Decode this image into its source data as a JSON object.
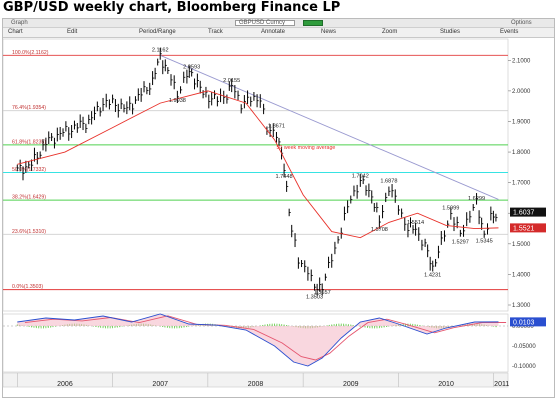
{
  "title": "GBP/USD weekly chart, Bloomberg Finance LP",
  "window": {
    "title_left": "Graph",
    "title_middle": "GBPUSD Curncy",
    "title_right": "Options"
  },
  "toolbar": {
    "items": [
      {
        "id": "chart",
        "label": "Chart"
      },
      {
        "id": "edit",
        "label": "Edit"
      },
      {
        "id": "period",
        "label": "Period/Range"
      },
      {
        "id": "track",
        "label": "Track"
      },
      {
        "id": "annotate",
        "label": "Annotate"
      },
      {
        "id": "news",
        "label": "News"
      },
      {
        "id": "zoom",
        "label": "Zoom"
      },
      {
        "id": "studies",
        "label": "Studies"
      },
      {
        "id": "events",
        "label": "Events"
      }
    ]
  },
  "colors": {
    "price_bars": "#000000",
    "moving_average": "#e8312a",
    "trendline": "#9a9ad0",
    "fib_red": "#e23a3a",
    "fib_green": "#4fd14f",
    "fib_cyan": "#37e3e3",
    "fib_label": "#c03030",
    "macd_line": "#2a4fd0",
    "signal_line": "#e5566f",
    "histogram": "#6fcf52"
  },
  "chart_data": [
    {
      "type": "bar",
      "title": "",
      "x_labels": [
        "2006",
        "2007",
        "2008",
        "2009",
        "2010",
        "2011"
      ],
      "y_ticks": [
        "1.3000",
        "1.4000",
        "1.5000",
        "1.6000",
        "1.7000",
        "1.8000",
        "1.9000",
        "2.0000",
        "2.1000"
      ],
      "ylim": [
        1.3,
        2.15
      ],
      "grid": false,
      "price_series": {
        "name": "GBPUSD",
        "points": [
          {
            "x": 2006.0,
            "y": 1.74
          },
          {
            "x": 2006.15,
            "y": 1.76
          },
          {
            "x": 2006.3,
            "y": 1.83
          },
          {
            "x": 2006.45,
            "y": 1.86
          },
          {
            "x": 2006.6,
            "y": 1.88
          },
          {
            "x": 2006.75,
            "y": 1.9
          },
          {
            "x": 2006.9,
            "y": 1.96
          },
          {
            "x": 2007.0,
            "y": 1.96
          },
          {
            "x": 2007.15,
            "y": 1.94
          },
          {
            "x": 2007.3,
            "y": 1.99
          },
          {
            "x": 2007.42,
            "y": 2.03
          },
          {
            "x": 2007.5,
            "y": 2.1162
          },
          {
            "x": 2007.58,
            "y": 2.06
          },
          {
            "x": 2007.68,
            "y": 1.9938
          },
          {
            "x": 2007.78,
            "y": 2.05
          },
          {
            "x": 2007.83,
            "y": 2.0593
          },
          {
            "x": 2007.95,
            "y": 1.99
          },
          {
            "x": 2008.1,
            "y": 1.97
          },
          {
            "x": 2008.2,
            "y": 1.99
          },
          {
            "x": 2008.25,
            "y": 2.0155
          },
          {
            "x": 2008.35,
            "y": 1.96
          },
          {
            "x": 2008.45,
            "y": 1.97
          },
          {
            "x": 2008.55,
            "y": 1.98
          },
          {
            "x": 2008.62,
            "y": 1.87
          },
          {
            "x": 2008.72,
            "y": 1.8671
          },
          {
            "x": 2008.8,
            "y": 1.7448
          },
          {
            "x": 2008.88,
            "y": 1.55
          },
          {
            "x": 2008.95,
            "y": 1.44
          },
          {
            "x": 2009.05,
            "y": 1.42
          },
          {
            "x": 2009.12,
            "y": 1.3503
          },
          {
            "x": 2009.2,
            "y": 1.3657
          },
          {
            "x": 2009.3,
            "y": 1.45
          },
          {
            "x": 2009.4,
            "y": 1.55
          },
          {
            "x": 2009.5,
            "y": 1.65
          },
          {
            "x": 2009.6,
            "y": 1.7042
          },
          {
            "x": 2009.72,
            "y": 1.66
          },
          {
            "x": 2009.8,
            "y": 1.5708
          },
          {
            "x": 2009.9,
            "y": 1.6878
          },
          {
            "x": 2010.0,
            "y": 1.62
          },
          {
            "x": 2010.1,
            "y": 1.55
          },
          {
            "x": 2010.18,
            "y": 1.5514
          },
          {
            "x": 2010.28,
            "y": 1.49
          },
          {
            "x": 2010.36,
            "y": 1.4231
          },
          {
            "x": 2010.45,
            "y": 1.5
          },
          {
            "x": 2010.55,
            "y": 1.5999
          },
          {
            "x": 2010.65,
            "y": 1.5297
          },
          {
            "x": 2010.75,
            "y": 1.6
          },
          {
            "x": 2010.82,
            "y": 1.6299
          },
          {
            "x": 2010.9,
            "y": 1.5345
          },
          {
            "x": 2010.97,
            "y": 1.58
          },
          {
            "x": 2011.05,
            "y": 1.6037
          }
        ]
      },
      "moving_average": {
        "name": "50 week moving average",
        "points": [
          {
            "x": 2006.0,
            "y": 1.76
          },
          {
            "x": 2006.5,
            "y": 1.8
          },
          {
            "x": 2007.0,
            "y": 1.88
          },
          {
            "x": 2007.5,
            "y": 1.96
          },
          {
            "x": 2008.0,
            "y": 2.0
          },
          {
            "x": 2008.4,
            "y": 1.96
          },
          {
            "x": 2008.7,
            "y": 1.84
          },
          {
            "x": 2009.0,
            "y": 1.66
          },
          {
            "x": 2009.3,
            "y": 1.54
          },
          {
            "x": 2009.6,
            "y": 1.52
          },
          {
            "x": 2009.9,
            "y": 1.57
          },
          {
            "x": 2010.2,
            "y": 1.6
          },
          {
            "x": 2010.5,
            "y": 1.56
          },
          {
            "x": 2010.8,
            "y": 1.55
          },
          {
            "x": 2011.05,
            "y": 1.5521
          }
        ]
      },
      "trendline": {
        "from": {
          "x": 2007.5,
          "y": 2.1162
        },
        "to": {
          "x": 2011.05,
          "y": 1.645
        }
      },
      "price_labels": [
        {
          "x": 2007.5,
          "y": 2.1162,
          "text": "2.1162",
          "pos": "above"
        },
        {
          "x": 2007.83,
          "y": 2.0593,
          "text": "2.0593",
          "pos": "above"
        },
        {
          "x": 2007.68,
          "y": 1.9938,
          "text": "1.9938",
          "pos": "below"
        },
        {
          "x": 2008.25,
          "y": 2.0155,
          "text": "2.0155",
          "pos": "above"
        },
        {
          "x": 2008.72,
          "y": 1.8671,
          "text": "1.8671",
          "pos": "above"
        },
        {
          "x": 2008.8,
          "y": 1.7448,
          "text": "1.7448",
          "pos": "below"
        },
        {
          "x": 2009.6,
          "y": 1.7042,
          "text": "1.7042",
          "pos": "above"
        },
        {
          "x": 2009.9,
          "y": 1.6878,
          "text": "1.6878",
          "pos": "above"
        },
        {
          "x": 2009.8,
          "y": 1.5708,
          "text": "1.5708",
          "pos": "below"
        },
        {
          "x": 2010.18,
          "y": 1.5514,
          "text": "1.5514",
          "pos": "above"
        },
        {
          "x": 2010.36,
          "y": 1.4231,
          "text": "1.4231",
          "pos": "below"
        },
        {
          "x": 2010.55,
          "y": 1.5999,
          "text": "1.5999",
          "pos": "above"
        },
        {
          "x": 2010.65,
          "y": 1.5297,
          "text": "1.5297",
          "pos": "below"
        },
        {
          "x": 2010.82,
          "y": 1.6299,
          "text": "1.6299",
          "pos": "above"
        },
        {
          "x": 2010.9,
          "y": 1.5345,
          "text": "1.5345",
          "pos": "below"
        },
        {
          "x": 2009.12,
          "y": 1.3503,
          "text": "1.3503",
          "pos": "below"
        },
        {
          "x": 2009.2,
          "y": 1.3657,
          "text": "1.3657",
          "pos": "below"
        }
      ],
      "fib_levels": [
        {
          "value": 2.1162,
          "label": "100.0%(2.1162)",
          "color": "#e23a3a"
        },
        {
          "value": 1.9354,
          "label": "76.4%(1.9354)",
          "color": "#cfcfcf"
        },
        {
          "value": 1.8235,
          "label": "61.8%(1.8235)",
          "color": "#4fd14f"
        },
        {
          "value": 1.7332,
          "label": "50.0%(1.7332)",
          "color": "#37e3e3"
        },
        {
          "value": 1.6429,
          "label": "38.2%(1.6429)",
          "color": "#4fd14f"
        },
        {
          "value": 1.531,
          "label": "23.6%(1.5310)",
          "color": "#cfcfcf"
        },
        {
          "value": 1.3503,
          "label": "0.0%(1.3503)",
          "color": "#e23a3a"
        }
      ],
      "annotation": "50 week moving average",
      "current_price": {
        "value": 1.6037,
        "text": "1.6037"
      },
      "current_ma": {
        "value": 1.5521,
        "text": "1.5521"
      }
    },
    {
      "type": "area",
      "title": "",
      "y_ticks": [
        "0.00000",
        "-0.05000",
        "-0.10000"
      ],
      "ylim": [
        -0.115,
        0.03
      ],
      "grid": false,
      "macd": {
        "points": [
          {
            "x": 2006.0,
            "y": 0.01
          },
          {
            "x": 2006.3,
            "y": 0.02
          },
          {
            "x": 2006.6,
            "y": 0.015
          },
          {
            "x": 2006.9,
            "y": 0.025
          },
          {
            "x": 2007.2,
            "y": 0.01
          },
          {
            "x": 2007.5,
            "y": 0.03
          },
          {
            "x": 2007.8,
            "y": 0.005
          },
          {
            "x": 2008.1,
            "y": 0.002
          },
          {
            "x": 2008.4,
            "y": -0.01
          },
          {
            "x": 2008.7,
            "y": -0.05
          },
          {
            "x": 2008.9,
            "y": -0.09
          },
          {
            "x": 2009.05,
            "y": -0.1
          },
          {
            "x": 2009.2,
            "y": -0.08
          },
          {
            "x": 2009.4,
            "y": -0.03
          },
          {
            "x": 2009.6,
            "y": 0.01
          },
          {
            "x": 2009.8,
            "y": 0.02
          },
          {
            "x": 2010.0,
            "y": 0.005
          },
          {
            "x": 2010.3,
            "y": -0.02
          },
          {
            "x": 2010.5,
            "y": -0.005
          },
          {
            "x": 2010.8,
            "y": 0.01
          },
          {
            "x": 2011.05,
            "y": 0.0103
          }
        ]
      },
      "current_value": {
        "value": 0.0103,
        "text": "0.0103"
      }
    }
  ]
}
